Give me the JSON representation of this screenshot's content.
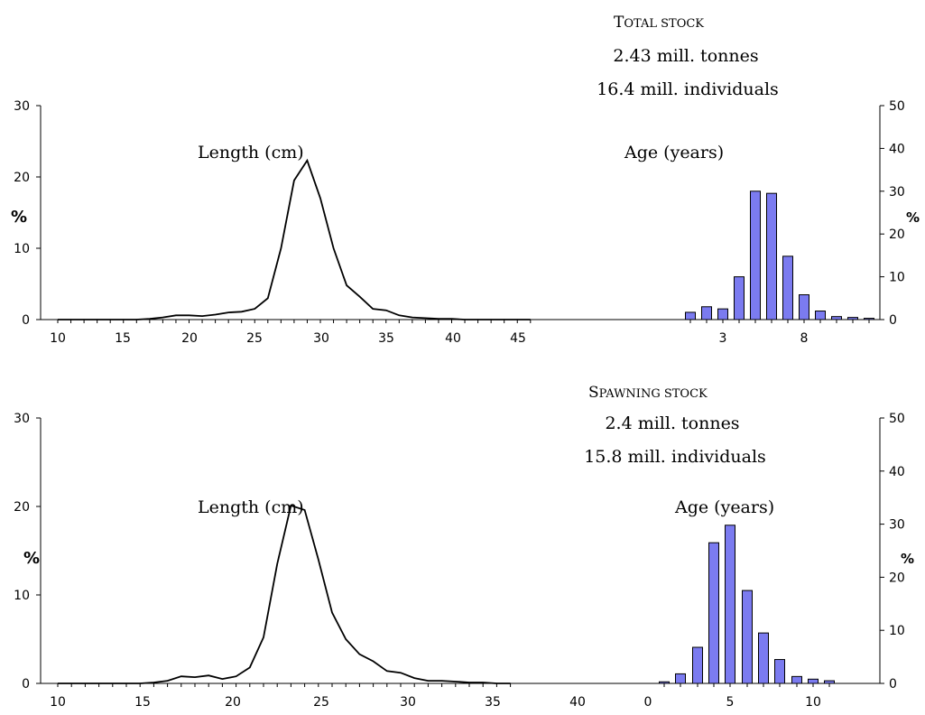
{
  "colors": {
    "bar_fill": "#7b7bf0",
    "line": "#000000"
  },
  "chart_data": [
    {
      "type": "line+bar",
      "heading_line1_big": "T",
      "heading_line1_small": "OTAL STOCK",
      "heading_line2": "2.43 mill. tonnes",
      "heading_line3": "16.4 mill. individuals",
      "length_panel": {
        "label": "Length (cm)",
        "ylabel": "%",
        "ylim": [
          0,
          30
        ],
        "yticks": [
          "0",
          "10",
          "20",
          "30"
        ],
        "xticks": [
          "10",
          "15",
          "20",
          "25",
          "30",
          "35",
          "40",
          "45"
        ],
        "x": [
          10,
          11,
          12,
          13,
          14,
          15,
          16,
          17,
          18,
          19,
          20,
          21,
          22,
          23,
          24,
          25,
          26,
          27,
          28,
          29,
          30,
          31,
          32,
          33,
          34,
          35,
          36,
          37,
          38,
          39,
          40,
          41,
          42,
          43,
          44,
          45,
          46
        ],
        "y": [
          0,
          0,
          0,
          0,
          0,
          0,
          0,
          0.1,
          0.3,
          0.6,
          0.6,
          0.5,
          0.7,
          1.0,
          1.1,
          1.5,
          3.0,
          10.0,
          19.5,
          22.3,
          17.0,
          10.0,
          4.8,
          3.2,
          1.5,
          1.3,
          0.6,
          0.3,
          0.2,
          0.1,
          0.1,
          0,
          0,
          0,
          0,
          0,
          0
        ]
      },
      "age_panel": {
        "label": "Age (years)",
        "ylabel": "%",
        "ylim": [
          0,
          50
        ],
        "yticks": [
          "0",
          "10",
          "20",
          "30",
          "40",
          "50"
        ],
        "xticks": [
          "3",
          "8"
        ],
        "ages": [
          1,
          2,
          3,
          4,
          5,
          6,
          7,
          8,
          9,
          10,
          11,
          12
        ],
        "values": [
          1.7,
          3.0,
          2.5,
          10.0,
          30.0,
          29.5,
          14.8,
          5.8,
          2.0,
          0.7,
          0.5,
          0.3
        ]
      }
    },
    {
      "type": "line+bar",
      "heading_line1_big": "S",
      "heading_line1_small": "PAWNING STOCK",
      "heading_line2": "2.4 mill. tonnes",
      "heading_line3": "15.8 mill. individuals",
      "length_panel": {
        "label": "Length (cm)",
        "ylabel": "%",
        "ylim": [
          0,
          30
        ],
        "yticks": [
          "0",
          "10",
          "20",
          "30"
        ],
        "xticks": [
          "10",
          "15",
          "20",
          "25",
          "30",
          "35",
          "40"
        ],
        "x": [
          10,
          11,
          12,
          13,
          14,
          15,
          16,
          17,
          18,
          19,
          20,
          21,
          22,
          23,
          24,
          25,
          26,
          27,
          28,
          29,
          30,
          31,
          32,
          33,
          34,
          35,
          36,
          37,
          38,
          39,
          40,
          41,
          42,
          43
        ],
        "y": [
          0,
          0,
          0,
          0,
          0,
          0,
          0,
          0.1,
          0.3,
          0.8,
          0.7,
          0.9,
          0.5,
          0.8,
          1.8,
          5.2,
          13.5,
          20.1,
          19.6,
          14.0,
          8.0,
          5.0,
          3.3,
          2.5,
          1.4,
          1.2,
          0.6,
          0.3,
          0.3,
          0.2,
          0.1,
          0.1,
          0,
          0
        ]
      },
      "age_panel": {
        "label": "Age (years)",
        "ylabel": "%",
        "ylim": [
          0,
          50
        ],
        "yticks": [
          "0",
          "10",
          "20",
          "30",
          "40",
          "50"
        ],
        "xticks": [
          "0",
          "5",
          "10"
        ],
        "ages": [
          1,
          2,
          3,
          4,
          5,
          6,
          7,
          8,
          9,
          10,
          11
        ],
        "values": [
          0.3,
          1.8,
          6.8,
          26.5,
          29.8,
          17.5,
          9.5,
          4.5,
          1.3,
          0.8,
          0.5
        ]
      }
    }
  ]
}
